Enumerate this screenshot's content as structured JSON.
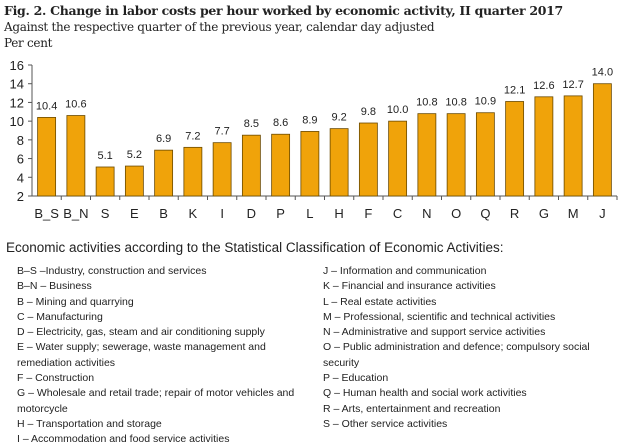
{
  "title": "Fig. 2. Change in labor costs per hour worked by economic activity, II quarter 2017",
  "subtitle": "Against the respective quarter of the previous year, calendar day adjusted",
  "unit": "Per cent",
  "chart_data": {
    "type": "bar",
    "categories": [
      "B_S",
      "B_N",
      "S",
      "E",
      "B",
      "K",
      "I",
      "D",
      "P",
      "L",
      "H",
      "F",
      "C",
      "N",
      "O",
      "Q",
      "R",
      "G",
      "M",
      "J"
    ],
    "values": [
      10.4,
      10.6,
      5.1,
      5.2,
      6.9,
      7.2,
      7.7,
      8.5,
      8.6,
      8.9,
      9.2,
      9.8,
      10.0,
      10.8,
      10.8,
      10.9,
      12.1,
      12.6,
      12.7,
      14.0
    ],
    "value_labels": [
      "10.4",
      "10.6",
      "5.1",
      "5.2",
      "6.9",
      "7.2",
      "7.7",
      "8.5",
      "8.6",
      "8.9",
      "9.2",
      "9.8",
      "10.0",
      "10.8",
      "10.8",
      "10.9",
      "12.1",
      "12.6",
      "12.7",
      "14.0"
    ],
    "ylim": [
      2,
      16
    ],
    "yticks": [
      "2",
      "4",
      "6",
      "8",
      "10",
      "12",
      "14",
      "16"
    ],
    "grid": false,
    "bar_color": "#F0A30A"
  },
  "legend": {
    "heading": "Economic activities according to the Statistical Classification of Economic Activities:",
    "left": [
      "B–S –Industry, construction and services",
      "B–N – Business",
      "B – Mining and quarrying",
      "C – Manufacturing",
      "D – Electricity, gas, steam and air conditioning supply",
      "E – Water supply; sewerage, waste management and remediation activities",
      "F – Construction",
      "G – Wholesale and retail trade; repair of motor vehicles and motorcycle",
      "H – Transportation and storage",
      "I – Accommodation and food service activities"
    ],
    "right": [
      "J – Information and communication",
      "K – Financial and insurance activities",
      "L – Real estate activities",
      "M – Professional, scientific and technical activities",
      "N – Administrative and support service activities",
      "O – Public administration and defence; compulsory social security",
      "P – Education",
      "Q – Human health and social work activities",
      "R – Arts, entertainment and recreation",
      "S – Other service activities"
    ]
  }
}
